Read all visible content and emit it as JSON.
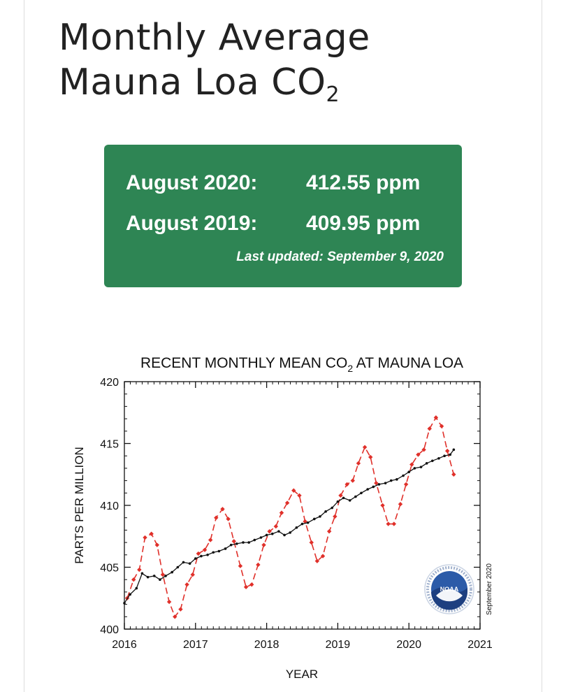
{
  "header": {
    "title_line1": "Monthly Average",
    "title_line2": "Mauna Loa CO",
    "title_sub": "2"
  },
  "readings": {
    "current_label": "August 2020:",
    "current_value": "412.55 ppm",
    "previous_label": "August 2019:",
    "previous_value": "409.95 ppm",
    "last_updated": "Last updated: September 9, 2020"
  },
  "colors": {
    "card": "#2e8554",
    "monthly_mean": "#e0302a",
    "trend": "#111111"
  },
  "chart_data": {
    "type": "line",
    "title_prefix": "RECENT MONTHLY MEAN CO",
    "title_sub": "2",
    "title_suffix": " AT MAUNA LOA",
    "xlabel": "YEAR",
    "ylabel": "PARTS PER MILLION",
    "xlim": [
      2016,
      2021
    ],
    "ylim": [
      400,
      420
    ],
    "xticks": [
      2016,
      2017,
      2018,
      2019,
      2020,
      2021
    ],
    "yticks": [
      400,
      405,
      410,
      415,
      420
    ],
    "annotation": "September 2020",
    "logo_text": "NOAA",
    "series": [
      {
        "style": "dashed-diamond",
        "color": "#e0302a",
        "x": [
          2016.04,
          2016.13,
          2016.21,
          2016.29,
          2016.38,
          2016.46,
          2016.54,
          2016.63,
          2016.71,
          2016.79,
          2016.88,
          2016.96,
          2017.04,
          2017.13,
          2017.21,
          2017.29,
          2017.38,
          2017.46,
          2017.54,
          2017.63,
          2017.71,
          2017.79,
          2017.88,
          2017.96,
          2018.04,
          2018.13,
          2018.21,
          2018.29,
          2018.38,
          2018.46,
          2018.54,
          2018.63,
          2018.71,
          2018.79,
          2018.88,
          2018.96,
          2019.04,
          2019.13,
          2019.21,
          2019.29,
          2019.38,
          2019.46,
          2019.54,
          2019.63,
          2019.71,
          2019.79,
          2019.88,
          2019.96,
          2020.04,
          2020.13,
          2020.21,
          2020.29,
          2020.38,
          2020.46,
          2020.54,
          2020.63
        ],
        "values": [
          402.5,
          404.0,
          404.8,
          407.4,
          407.7,
          406.8,
          404.4,
          402.2,
          401.0,
          401.6,
          403.6,
          404.4,
          406.1,
          406.4,
          407.2,
          409.0,
          409.7,
          408.9,
          407.1,
          405.1,
          403.4,
          403.6,
          405.2,
          406.8,
          407.9,
          408.3,
          409.4,
          410.2,
          411.2,
          410.8,
          408.7,
          407.0,
          405.5,
          405.9,
          407.9,
          409.1,
          410.8,
          411.7,
          412.0,
          413.4,
          414.7,
          413.9,
          411.8,
          410.0,
          408.5,
          408.5,
          410.1,
          411.7,
          413.3,
          414.1,
          414.5,
          416.2,
          417.1,
          416.4,
          414.4,
          412.5
        ]
      },
      {
        "style": "solid-dot",
        "color": "#111111",
        "x": [
          2016.0,
          2016.08,
          2016.17,
          2016.25,
          2016.33,
          2016.42,
          2016.5,
          2016.58,
          2016.67,
          2016.75,
          2016.83,
          2016.92,
          2017.0,
          2017.08,
          2017.17,
          2017.25,
          2017.33,
          2017.42,
          2017.5,
          2017.58,
          2017.67,
          2017.75,
          2017.83,
          2017.92,
          2018.0,
          2018.08,
          2018.17,
          2018.25,
          2018.33,
          2018.42,
          2018.5,
          2018.58,
          2018.67,
          2018.75,
          2018.83,
          2018.92,
          2019.0,
          2019.08,
          2019.17,
          2019.25,
          2019.33,
          2019.42,
          2019.5,
          2019.58,
          2019.67,
          2019.75,
          2019.83,
          2019.92,
          2020.0,
          2020.08,
          2020.17,
          2020.25,
          2020.33,
          2020.42,
          2020.5,
          2020.58,
          2020.63
        ],
        "values": [
          402.1,
          402.8,
          403.3,
          404.5,
          404.2,
          404.3,
          404.0,
          404.3,
          404.6,
          405.0,
          405.4,
          405.3,
          405.7,
          405.9,
          406.0,
          406.2,
          406.3,
          406.5,
          406.8,
          406.9,
          407.0,
          407.0,
          407.2,
          407.4,
          407.6,
          407.7,
          407.9,
          407.6,
          407.8,
          408.2,
          408.5,
          408.6,
          408.9,
          409.1,
          409.5,
          409.8,
          410.3,
          410.6,
          410.4,
          410.7,
          411.0,
          411.3,
          411.5,
          411.7,
          411.8,
          412.0,
          412.1,
          412.4,
          412.7,
          413.0,
          413.1,
          413.4,
          413.6,
          413.8,
          414.0,
          414.1,
          414.5
        ]
      }
    ]
  }
}
